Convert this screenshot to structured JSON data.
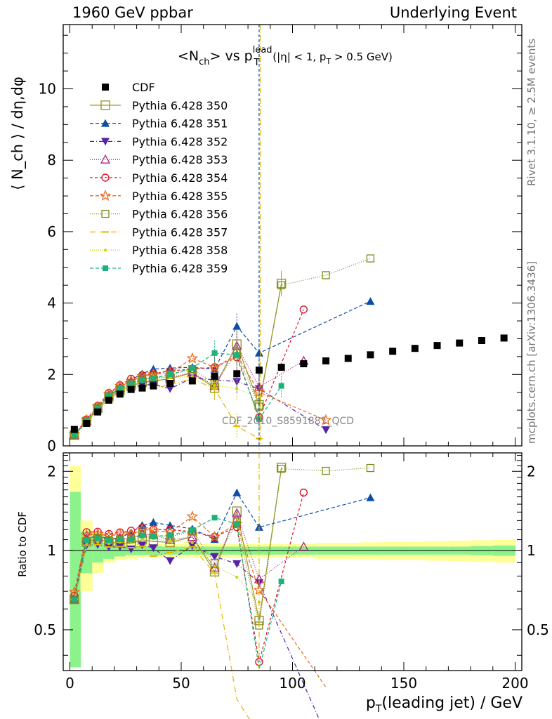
{
  "header": {
    "left": "1960 GeV ppbar",
    "right": "Underlying Event"
  },
  "side_labels": {
    "rivet": "Rivet 3.1.10, ≥ 2.5M events",
    "mcplots": "mcplots.cern.ch [arXiv:1306.3436]"
  },
  "watermark": "CDF_2010_S8591881_QCD",
  "main_title": {
    "pre": "<N",
    "sub": "ch",
    "mid": "> vs p",
    "sup2": "lead",
    "sub2": "T",
    "rest": " (|η| < 1, p",
    "sub3": "T",
    "tail": " > 0.5 GeV)"
  },
  "y_label_main": "⟨ N_ch ⟩ / dη,dφ",
  "y_label_ratio": "Ratio to CDF",
  "x_label": {
    "pre": "p",
    "sub": "T",
    "post": "(leading jet) / GeV"
  },
  "ratio_ticks": [
    "0.5",
    "1",
    "2"
  ],
  "chart_data": {
    "type": "scatter",
    "xlim": [
      -3,
      203
    ],
    "ylim_main": [
      0,
      11.8
    ],
    "ylim_ratio": [
      0.35,
      2.35
    ],
    "x_ticks": [
      0,
      50,
      100,
      150,
      200
    ],
    "y_ticks_main": [
      0,
      2,
      4,
      6,
      8,
      10
    ],
    "reference": {
      "name": "CDF",
      "color": "#000000",
      "x": [
        2,
        7.5,
        12.5,
        17.5,
        22.5,
        27.5,
        32.5,
        37.5,
        45,
        55,
        65,
        75,
        85,
        95,
        105,
        115,
        125,
        135,
        145,
        155,
        165,
        175,
        185,
        195
      ],
      "y": [
        0.46,
        0.63,
        0.95,
        1.28,
        1.45,
        1.58,
        1.62,
        1.68,
        1.75,
        1.82,
        1.95,
        2.02,
        2.12,
        2.2,
        2.3,
        2.38,
        2.45,
        2.55,
        2.65,
        2.73,
        2.81,
        2.88,
        2.95,
        3.02
      ],
      "band_green": [
        0.67,
        0.18,
        0.1,
        0.07,
        0.05,
        0.04,
        0.04,
        0.04,
        0.035,
        0.035,
        0.035,
        0.035,
        0.035,
        0.035,
        0.035,
        0.035,
        0.035,
        0.035,
        0.035,
        0.035,
        0.035,
        0.035,
        0.04,
        0.045
      ],
      "band_yellow": [
        1.1,
        0.3,
        0.18,
        0.1,
        0.08,
        0.07,
        0.06,
        0.06,
        0.06,
        0.06,
        0.06,
        0.06,
        0.06,
        0.06,
        0.06,
        0.07,
        0.07,
        0.075,
        0.08,
        0.08,
        0.085,
        0.09,
        0.095,
        0.1
      ]
    },
    "series": [
      {
        "name": "Pythia 6.428 350",
        "color": "#99992a",
        "marker": "square-open",
        "dash": "",
        "x": [
          2,
          7.5,
          12.5,
          17.5,
          22.5,
          27.5,
          32.5,
          37.5,
          45,
          55,
          65,
          75,
          85,
          95
        ],
        "y": [
          0.3,
          0.68,
          1.05,
          1.38,
          1.55,
          1.68,
          1.78,
          1.82,
          1.88,
          2.05,
          1.62,
          2.85,
          1.15,
          4.55
        ]
      },
      {
        "name": "Pythia 6.428 351",
        "color": "#0b4da8",
        "marker": "triangle-up",
        "dash": "5,3",
        "x": [
          2,
          7.5,
          12.5,
          17.5,
          22.5,
          27.5,
          32.5,
          37.5,
          45,
          55,
          65,
          75,
          85,
          135
        ],
        "y": [
          0.3,
          0.7,
          1.08,
          1.42,
          1.62,
          1.85,
          2.02,
          2.15,
          2.18,
          2.2,
          2.15,
          3.35,
          2.6,
          4.05
        ]
      },
      {
        "name": "Pythia 6.428 352",
        "color": "#5522aa",
        "marker": "triangle-down",
        "dash": "6,3,1,3",
        "x": [
          2,
          7.5,
          12.5,
          17.5,
          22.5,
          27.5,
          32.5,
          37.5,
          45,
          55,
          65,
          75,
          85,
          115
        ],
        "y": [
          0.3,
          0.66,
          1.0,
          1.32,
          1.5,
          1.6,
          1.7,
          1.72,
          1.6,
          1.9,
          1.85,
          1.8,
          1.6,
          0.45
        ]
      },
      {
        "name": "Pythia 6.428 353",
        "color": "#b01e8e",
        "marker": "triangle-open",
        "dash": "1,2",
        "x": [
          2,
          7.5,
          12.5,
          17.5,
          22.5,
          27.5,
          32.5,
          37.5,
          45,
          55,
          65,
          75,
          85,
          105
        ],
        "y": [
          0.3,
          0.7,
          1.07,
          1.4,
          1.62,
          1.75,
          1.88,
          1.92,
          1.92,
          2.05,
          1.68,
          2.8,
          1.65,
          2.38
        ]
      },
      {
        "name": "Pythia 6.428 354",
        "color": "#d9142e",
        "marker": "circle-open",
        "dash": "4,3",
        "x": [
          2,
          7.5,
          12.5,
          17.5,
          22.5,
          27.5,
          32.5,
          37.5,
          45,
          55,
          65,
          75,
          85,
          105
        ],
        "y": [
          0.31,
          0.74,
          1.12,
          1.48,
          1.7,
          1.88,
          1.98,
          2.02,
          2.1,
          2.15,
          2.2,
          2.48,
          0.8,
          3.82
        ]
      },
      {
        "name": "Pythia 6.428 355",
        "color": "#ee6a1a",
        "marker": "star-open",
        "dash": "5,3",
        "x": [
          2,
          7.5,
          12.5,
          17.5,
          22.5,
          27.5,
          32.5,
          37.5,
          45,
          55,
          65,
          75,
          85,
          115
        ],
        "y": [
          0.32,
          0.72,
          1.1,
          1.45,
          1.68,
          1.82,
          1.95,
          2.0,
          2.05,
          2.45,
          2.2,
          2.55,
          1.5,
          0.72
        ]
      },
      {
        "name": "Pythia 6.428 356",
        "color": "#7d8c1a",
        "marker": "square-open-small",
        "dash": "1,2",
        "x": [
          2,
          7.5,
          12.5,
          17.5,
          22.5,
          27.5,
          32.5,
          37.5,
          45,
          55,
          65,
          75,
          85,
          95,
          115,
          135
        ],
        "y": [
          0.3,
          0.68,
          1.06,
          1.4,
          1.6,
          1.75,
          1.88,
          1.92,
          1.98,
          2.15,
          1.75,
          2.6,
          1.1,
          4.5,
          4.78,
          5.25
        ]
      },
      {
        "name": "Pythia 6.428 357",
        "color": "#e0b800",
        "marker": "dash",
        "dash": "8,3,1,3",
        "x": [
          2,
          7.5,
          12.5,
          17.5,
          22.5,
          27.5,
          32.5,
          37.5,
          45,
          55,
          65,
          75,
          85
        ],
        "y": [
          0.3,
          0.66,
          1.0,
          1.32,
          1.5,
          1.62,
          1.68,
          1.6,
          1.72,
          1.88,
          1.6,
          0.55,
          0.2
        ]
      },
      {
        "name": "Pythia 6.428 358",
        "color": "#c8d400",
        "marker": "dot",
        "dash": "1,2",
        "x": [
          2,
          7.5,
          12.5,
          17.5,
          22.5,
          27.5,
          32.5,
          37.5,
          45,
          55,
          65,
          75,
          85
        ],
        "y": [
          0.3,
          0.67,
          1.02,
          1.36,
          1.56,
          1.7,
          1.8,
          1.86,
          1.9,
          1.95,
          1.7,
          1.6,
          1.35
        ]
      },
      {
        "name": "Pythia 6.428 359",
        "color": "#1eb27a",
        "marker": "square",
        "dash": "5,3",
        "x": [
          2,
          7.5,
          12.5,
          17.5,
          22.5,
          27.5,
          32.5,
          37.5,
          45,
          55,
          65,
          75,
          85,
          95
        ],
        "y": [
          0.3,
          0.69,
          1.06,
          1.4,
          1.6,
          1.74,
          1.85,
          1.9,
          2.0,
          2.18,
          2.6,
          2.55,
          0.75,
          1.68
        ]
      }
    ]
  }
}
